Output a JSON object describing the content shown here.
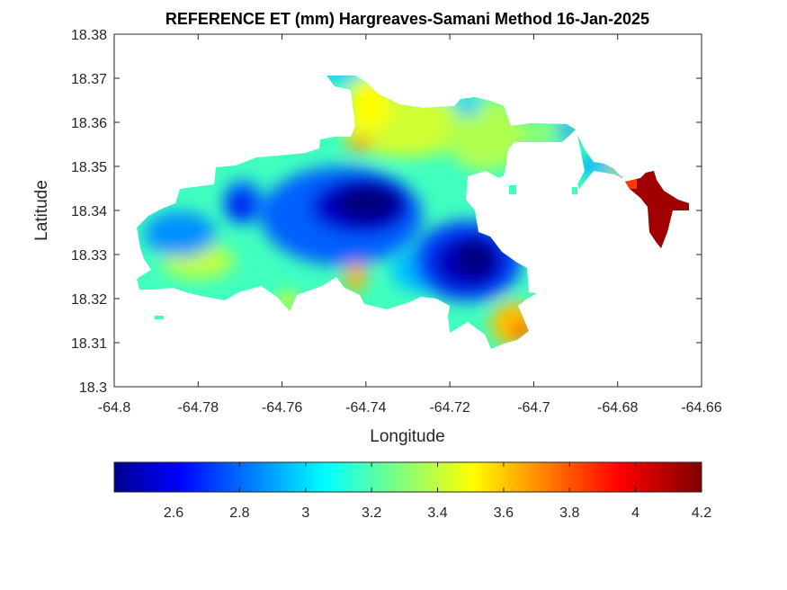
{
  "title": "REFERENCE ET (mm) Hargreaves-Samani Method  16-Jan-2025",
  "axes": {
    "xlabel": "Longitude",
    "ylabel": "Latitude",
    "xlim": [
      -64.8,
      -64.66
    ],
    "ylim": [
      18.3,
      18.38
    ],
    "xticks": [
      "-64.8",
      "-64.78",
      "-64.76",
      "-64.74",
      "-64.72",
      "-64.7",
      "-64.68",
      "-64.66"
    ],
    "yticks": [
      "18.3",
      "18.31",
      "18.32",
      "18.33",
      "18.34",
      "18.35",
      "18.36",
      "18.37",
      "18.38"
    ]
  },
  "colorbar": {
    "colormap": "jet",
    "range": [
      2.42,
      4.2
    ],
    "ticks": [
      "2.6",
      "2.8",
      "3",
      "3.2",
      "3.4",
      "3.6",
      "3.8",
      "4",
      "4.2"
    ]
  },
  "colors": {
    "jet_stops": [
      "#00008f",
      "#0000ff",
      "#0080ff",
      "#00ffff",
      "#80ff80",
      "#ffff00",
      "#ff8000",
      "#ff0000",
      "#800000"
    ]
  }
}
